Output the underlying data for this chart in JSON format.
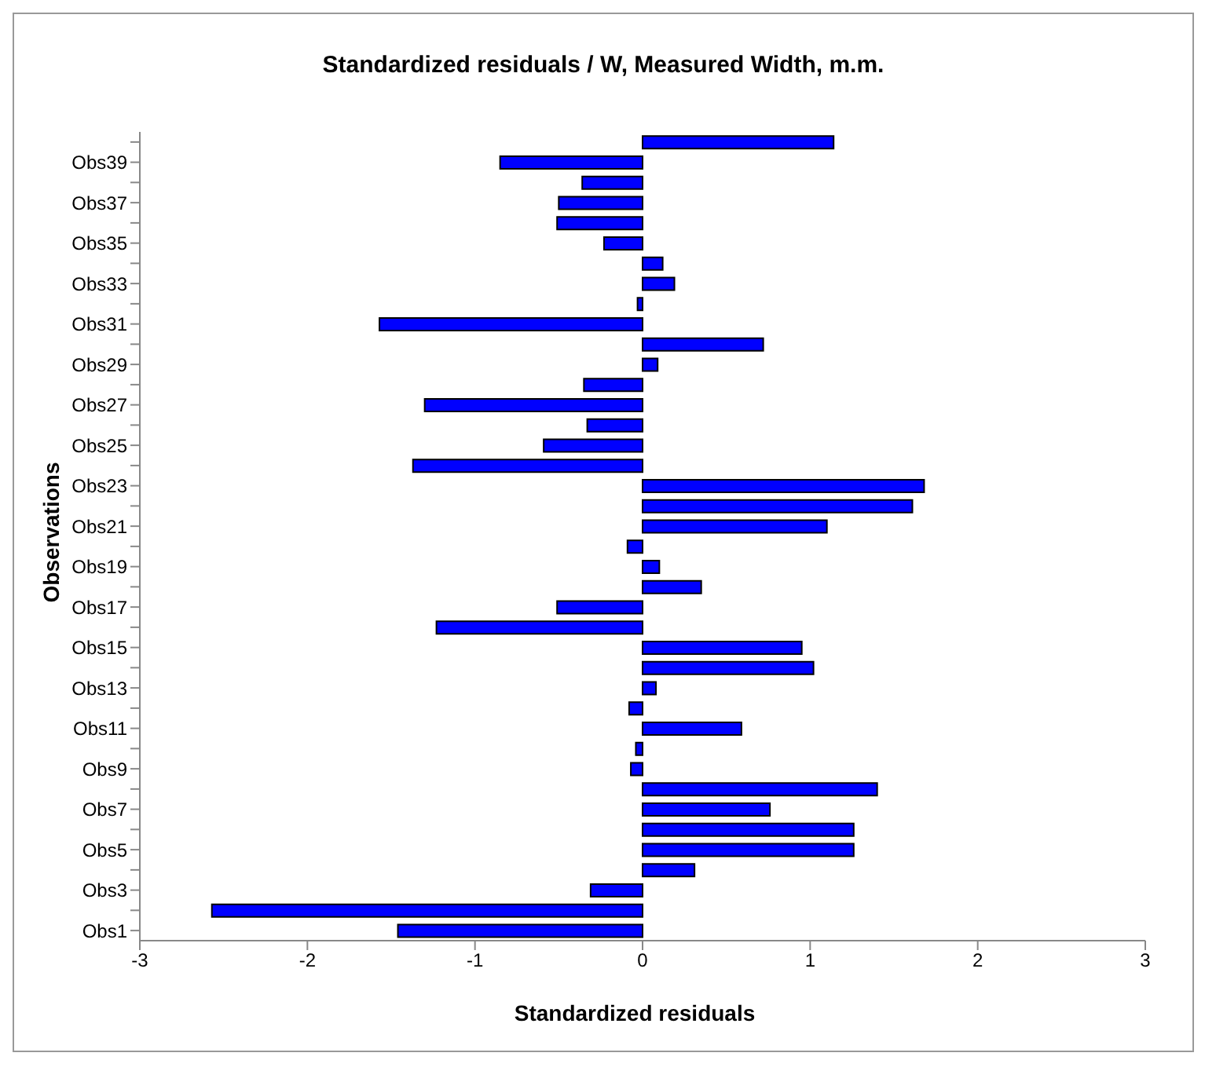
{
  "chart_data": {
    "type": "bar",
    "orientation": "horizontal",
    "title": "Standardized residuals / W, Measured Width, m.m.",
    "xlabel": "Standardized residuals",
    "ylabel": "Observations",
    "categories": [
      null,
      "Obs39",
      null,
      "Obs37",
      null,
      "Obs35",
      null,
      "Obs33",
      null,
      "Obs31",
      null,
      "Obs29",
      null,
      "Obs27",
      null,
      "Obs25",
      null,
      "Obs23",
      null,
      "Obs21",
      null,
      "Obs19",
      null,
      "Obs17",
      null,
      "Obs15",
      null,
      "Obs13",
      null,
      "Obs11",
      null,
      "Obs9",
      null,
      "Obs7",
      null,
      "Obs5",
      null,
      "Obs3",
      null,
      "Obs1"
    ],
    "series": [
      {
        "color": "#0000ff",
        "values": [
          1.14,
          -0.85,
          -0.36,
          -0.5,
          -0.51,
          -0.23,
          0.12,
          0.19,
          -0.03,
          -1.57,
          0.72,
          0.09,
          -0.35,
          -1.3,
          -0.33,
          -0.59,
          -1.37,
          1.68,
          1.61,
          1.1,
          -0.09,
          0.1,
          0.35,
          -0.51,
          -1.23,
          0.95,
          1.02,
          0.08,
          -0.08,
          0.59,
          -0.04,
          -0.07,
          1.4,
          0.76,
          1.26,
          1.26,
          0.31,
          -0.31,
          -2.57,
          -1.46
        ]
      }
    ],
    "xlim": [
      -3,
      3
    ],
    "xticks": [
      -3,
      -2,
      -1,
      0,
      1,
      2,
      3
    ],
    "grid": false,
    "legend": false
  }
}
